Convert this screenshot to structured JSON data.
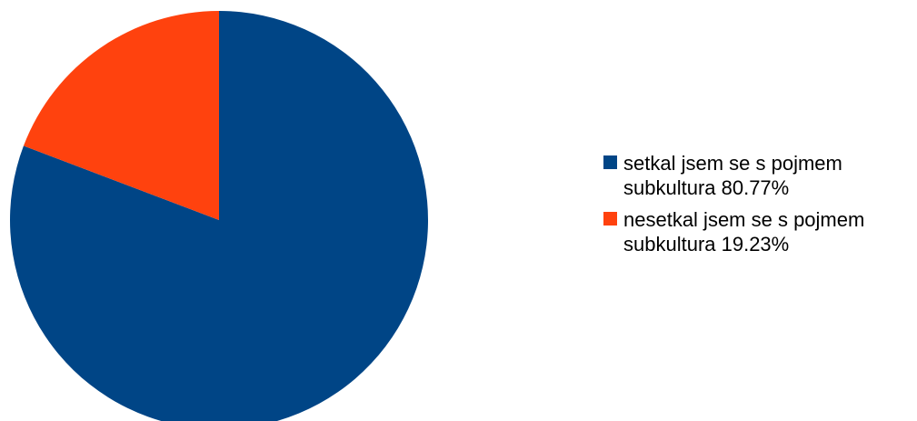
{
  "chart_data": {
    "type": "pie",
    "categories": [
      "setkal jsem se s pojmem subkultura",
      "nesetkal jsem se s pojmem subkultura"
    ],
    "values": [
      80.77,
      19.23
    ],
    "colors": [
      "#004586",
      "#ff420e"
    ],
    "start_angle_deg": 0,
    "direction": "clockwise",
    "legend_position": "right",
    "legend": [
      {
        "label": "setkal jsem se s pojmem subkultura 80.77%",
        "color": "#004586"
      },
      {
        "label": "nesetkal jsem se s pojmem subkultura 19.23%",
        "color": "#ff420e"
      }
    ]
  }
}
